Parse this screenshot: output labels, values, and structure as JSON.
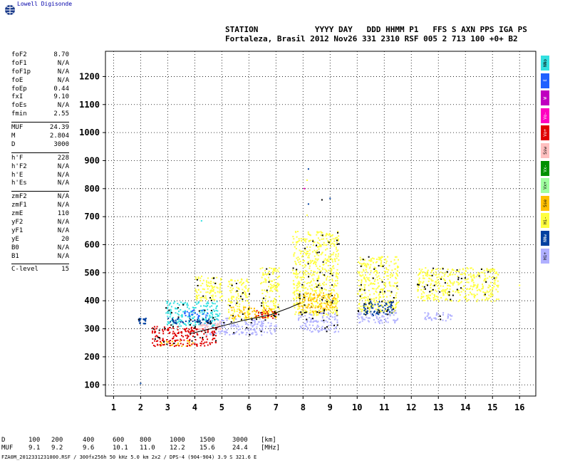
{
  "brand": "Lowell Digisonde",
  "header": {
    "line1": "STATION            YYYY DAY   DDD HHMM P1   FFS S AXN PPS IGA PS",
    "line2": "Fortaleza, Brasil 2012 Nov26 331 2310 RSF 005 2 713 100 +0+ B2"
  },
  "params": [
    [
      {
        "k": "foF2",
        "v": "8.70"
      },
      {
        "k": "foF1",
        "v": "N/A"
      },
      {
        "k": "foF1p",
        "v": "N/A"
      },
      {
        "k": "foE",
        "v": "N/A"
      },
      {
        "k": "foEp",
        "v": "0.44"
      },
      {
        "k": "fxI",
        "v": "9.10"
      },
      {
        "k": "foEs",
        "v": "N/A"
      },
      {
        "k": "fmin",
        "v": "2.55"
      }
    ],
    [
      {
        "k": "MUF",
        "v": "24.39"
      },
      {
        "k": "M",
        "v": "2.804"
      },
      {
        "k": "D",
        "v": "3000"
      }
    ],
    [
      {
        "k": "h'F",
        "v": "228"
      },
      {
        "k": "h'F2",
        "v": "N/A"
      },
      {
        "k": "h'E",
        "v": "N/A"
      },
      {
        "k": "h'Es",
        "v": "N/A"
      }
    ],
    [
      {
        "k": "zmF2",
        "v": "N/A"
      },
      {
        "k": "zmF1",
        "v": "N/A"
      },
      {
        "k": "zmE",
        "v": "110"
      },
      {
        "k": "yF2",
        "v": "N/A"
      },
      {
        "k": "yF1",
        "v": "N/A"
      },
      {
        "k": "yE",
        "v": "20"
      },
      {
        "k": "B0",
        "v": "N/A"
      },
      {
        "k": "B1",
        "v": "N/A"
      }
    ],
    [
      {
        "k": "C-level",
        "v": "15"
      }
    ]
  ],
  "muf_table": {
    "d_label": "D",
    "muf_label": "MUF",
    "d_values": [
      "100",
      "200",
      "400",
      "600",
      "800",
      "1000",
      "1500",
      "3000"
    ],
    "muf_values": [
      "9.1",
      "9.2",
      "9.6",
      "10.1",
      "11.0",
      "12.2",
      "15.6",
      "24.4"
    ],
    "d_unit": "[km]",
    "muf_unit": "[MHz]"
  },
  "footer": "FZA0M_2012331231000.RSF / 300fx256h 50 kHz 5.0 km 2x2 / DPS-4 (904-904)  3.9 S 321.6 E",
  "legend": [
    {
      "label": "NNo",
      "color": "#33e0e0"
    },
    {
      "label": "E",
      "color": "#2060ff"
    },
    {
      "label": "W",
      "color": "#c000c0"
    },
    {
      "label": "Vo-",
      "color": "#ff00c0"
    },
    {
      "label": "Vo+",
      "color": "#e00000"
    },
    {
      "label": "Ssw",
      "color": "#ffc0c0"
    },
    {
      "label": "Vx-",
      "color": "#009000"
    },
    {
      "label": "Vx+",
      "color": "#a0ffa0"
    },
    {
      "label": "Sse",
      "color": "#ffc000"
    },
    {
      "label": "Hi-",
      "color": "#ffff40"
    },
    {
      "label": "NNw",
      "color": "#0040a0"
    },
    {
      "label": "Hi+",
      "color": "#b0b0ff"
    }
  ],
  "chart_data": {
    "type": "scatter",
    "title": "",
    "xlabel": "",
    "ylabel": "",
    "xlim": [
      0.7,
      16.6
    ],
    "ylim": [
      60,
      1290
    ],
    "x_ticks": [
      1,
      2,
      3,
      4,
      5,
      6,
      7,
      8,
      9,
      10,
      11,
      12,
      13,
      14,
      15,
      16
    ],
    "y_ticks": [
      100,
      200,
      300,
      400,
      500,
      600,
      700,
      800,
      900,
      1000,
      1100,
      1200
    ],
    "grid": true,
    "trace": {
      "name": "",
      "x": [
        3.8,
        4.8,
        5.8,
        6.8,
        7.5,
        7.9
      ],
      "y": [
        282,
        305,
        330,
        350,
        375,
        392
      ]
    },
    "series": [
      {
        "name": "Hi+",
        "color": "#b0b0ff",
        "regions": [
          {
            "x": [
              4.3,
              7.0
            ],
            "y": [
              280,
              340
            ]
          },
          {
            "x": [
              7.8,
              9.3
            ],
            "y": [
              290,
              360
            ]
          },
          {
            "x": [
              10.0,
              11.5
            ],
            "y": [
              320,
              370
            ]
          },
          {
            "x": [
              12.4,
              13.5
            ],
            "y": [
              330,
              360
            ]
          }
        ]
      },
      {
        "name": "Hi-",
        "color": "#ffff40",
        "regions": [
          {
            "x": [
              4.0,
              5.0
            ],
            "y": [
              400,
              490
            ]
          },
          {
            "x": [
              5.2,
              6.0
            ],
            "y": [
              330,
              480
            ]
          },
          {
            "x": [
              6.4,
              7.1
            ],
            "y": [
              340,
              520
            ]
          },
          {
            "x": [
              7.6,
              9.3
            ],
            "y": [
              350,
              650
            ]
          },
          {
            "x": [
              10.0,
              11.5
            ],
            "y": [
              360,
              560
            ]
          },
          {
            "x": [
              12.2,
              15.2
            ],
            "y": [
              400,
              520
            ]
          }
        ]
      },
      {
        "name": "NNo",
        "color": "#33e0e0",
        "regions": [
          {
            "x": [
              2.9,
              4.9
            ],
            "y": [
              310,
              400
            ]
          }
        ]
      },
      {
        "name": "Sse",
        "color": "#ffc000",
        "regions": [
          {
            "x": [
              5.3,
              7.0
            ],
            "y": [
              340,
              380
            ]
          },
          {
            "x": [
              7.8,
              9.2
            ],
            "y": [
              360,
              430
            ]
          },
          {
            "x": [
              2.7,
              4.0
            ],
            "y": [
              240,
              260
            ]
          }
        ]
      },
      {
        "name": "Vo+",
        "color": "#e00000",
        "regions": [
          {
            "x": [
              2.4,
              4.8
            ],
            "y": [
              240,
              310
            ]
          },
          {
            "x": [
              6.2,
              7.0
            ],
            "y": [
              340,
              370
            ]
          }
        ]
      },
      {
        "name": "E",
        "color": "#2060ff",
        "regions": [
          {
            "x": [
              3.6,
              4.5
            ],
            "y": [
              340,
              370
            ]
          }
        ]
      },
      {
        "name": "Ssw",
        "color": "#ffc0c0",
        "regions": [
          {
            "x": [
              4.0,
              5.0
            ],
            "y": [
              300,
              330
            ]
          }
        ]
      },
      {
        "name": "NNw",
        "color": "#0040a0",
        "regions": [
          {
            "x": [
              2.8,
              4.6
            ],
            "y": [
              320,
              340
            ]
          },
          {
            "x": [
              10.2,
              11.3
            ],
            "y": [
              350,
              400
            ]
          },
          {
            "x": [
              1.9,
              2.2
            ],
            "y": [
              320,
              340
            ]
          }
        ]
      }
    ],
    "outliers": [
      {
        "x": 2.0,
        "y": 105,
        "color": "#0040a0"
      },
      {
        "x": 4.25,
        "y": 685,
        "color": "#33e0e0"
      },
      {
        "x": 8.2,
        "y": 870,
        "color": "#0040a0"
      },
      {
        "x": 8.15,
        "y": 830,
        "color": "#ffff40"
      },
      {
        "x": 8.05,
        "y": 800,
        "color": "#ff00c0"
      },
      {
        "x": 8.2,
        "y": 745,
        "color": "#0040a0"
      },
      {
        "x": 8.15,
        "y": 705,
        "color": "#ffff40"
      },
      {
        "x": 8.7,
        "y": 760,
        "color": "#000000"
      },
      {
        "x": 9.0,
        "y": 765,
        "color": "#0040a0"
      },
      {
        "x": 16.0,
        "y": 455,
        "color": "#ffff40"
      },
      {
        "x": 15.2,
        "y": 470,
        "color": "#ffff40"
      }
    ]
  }
}
